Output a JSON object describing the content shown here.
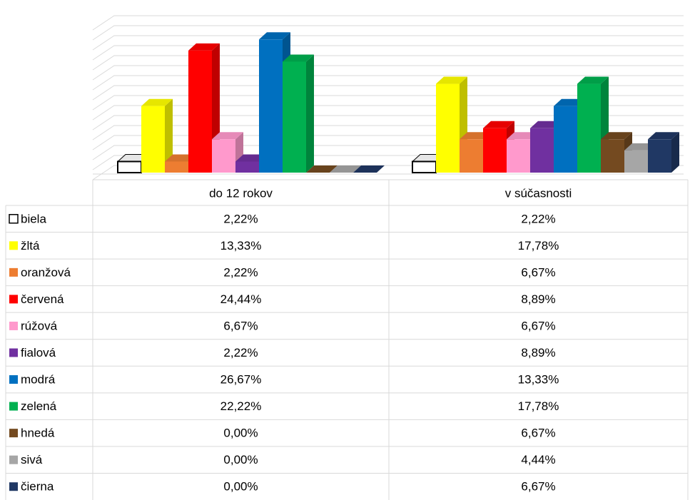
{
  "chart_data": {
    "type": "bar",
    "categories": [
      "do 12 rokov",
      "v súčasnosti"
    ],
    "series": [
      {
        "name": "biela",
        "color": "#ffffff",
        "values": [
          2.22,
          2.22
        ],
        "value_labels": [
          "2,22%",
          "2,22%"
        ]
      },
      {
        "name": "žltá",
        "color": "#ffff00",
        "values": [
          13.33,
          17.78
        ],
        "value_labels": [
          "13,33%",
          "17,78%"
        ]
      },
      {
        "name": "oranžová",
        "color": "#ed7d31",
        "values": [
          2.22,
          6.67
        ],
        "value_labels": [
          "2,22%",
          "6,67%"
        ]
      },
      {
        "name": "červená",
        "color": "#ff0000",
        "values": [
          24.44,
          8.89
        ],
        "value_labels": [
          "24,44%",
          "8,89%"
        ]
      },
      {
        "name": "rúžová",
        "color": "#ff99cc",
        "values": [
          6.67,
          6.67
        ],
        "value_labels": [
          "6,67%",
          "6,67%"
        ]
      },
      {
        "name": "fialová",
        "color": "#7030a0",
        "values": [
          2.22,
          8.89
        ],
        "value_labels": [
          "2,22%",
          "8,89%"
        ]
      },
      {
        "name": "modrá",
        "color": "#0070c0",
        "values": [
          26.67,
          13.33
        ],
        "value_labels": [
          "26,67%",
          "13,33%"
        ]
      },
      {
        "name": "zelená",
        "color": "#00b050",
        "values": [
          22.22,
          17.78
        ],
        "value_labels": [
          "22,22%",
          "17,78%"
        ]
      },
      {
        "name": "hnedá",
        "color": "#744a20",
        "values": [
          0.0,
          6.67
        ],
        "value_labels": [
          "0,00%",
          "6,67%"
        ]
      },
      {
        "name": "sivá",
        "color": "#a6a6a6",
        "values": [
          0.0,
          4.44
        ],
        "value_labels": [
          "0,00%",
          "4,44%"
        ]
      },
      {
        "name": "čierna",
        "color": "#203864",
        "values": [
          0.0,
          6.67
        ],
        "value_labels": [
          "0,00%",
          "6,67%"
        ]
      }
    ],
    "ylim": [
      0,
      30
    ],
    "yticks": [
      0,
      2,
      4,
      6,
      8,
      10,
      12,
      14,
      16,
      18,
      20,
      22,
      24,
      26,
      28,
      30
    ],
    "grid": true
  }
}
